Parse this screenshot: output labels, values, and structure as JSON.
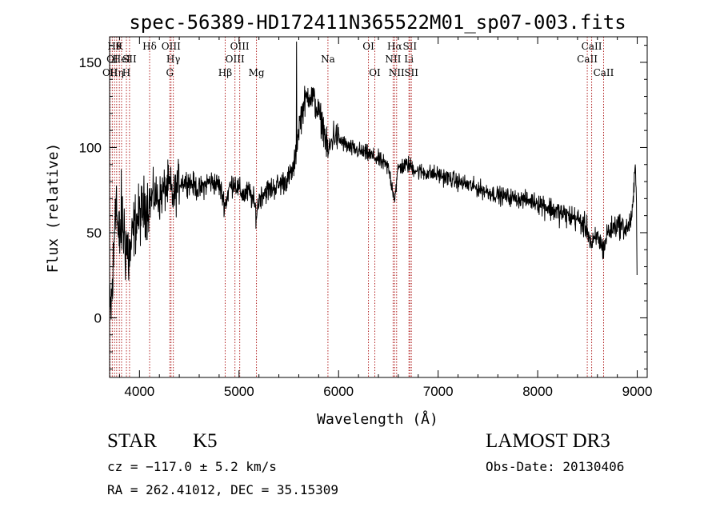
{
  "chart_data": {
    "type": "line",
    "title": "spec-56389-HD172411N365522M01_sp07-003.fits",
    "xlabel": "Wavelength (Å)",
    "ylabel": "Flux (relative)",
    "xlim": [
      3700,
      9100
    ],
    "ylim": [
      -35,
      165
    ],
    "xticks": [
      4000,
      5000,
      6000,
      7000,
      8000,
      9000
    ],
    "yticks": [
      0,
      50,
      100,
      150
    ],
    "grid": false,
    "line_color": "#000000",
    "marker_color": "#b22222",
    "spectrum_anchors": {
      "x": [
        3700,
        3720,
        3740,
        3760,
        3790,
        3820,
        3860,
        3900,
        3950,
        4000,
        4050,
        4100,
        4150,
        4200,
        4250,
        4300,
        4340,
        4400,
        4500,
        4600,
        4700,
        4800,
        4861,
        4900,
        4950,
        5000,
        5050,
        5100,
        5150,
        5175,
        5200,
        5250,
        5300,
        5400,
        5500,
        5550,
        5580,
        5600,
        5650,
        5700,
        5750,
        5800,
        5850,
        5893,
        5950,
        6000,
        6100,
        6200,
        6300,
        6400,
        6500,
        6563,
        6600,
        6700,
        6800,
        7000,
        7200,
        7400,
        7600,
        7800,
        8000,
        8200,
        8400,
        8500,
        8542,
        8600,
        8662,
        8700,
        8800,
        8900,
        8950,
        8980,
        8990,
        9000
      ],
      "y": [
        -5,
        10,
        30,
        80,
        40,
        60,
        45,
        35,
        55,
        60,
        65,
        68,
        72,
        70,
        75,
        78,
        70,
        80,
        80,
        75,
        80,
        78,
        66,
        76,
        80,
        75,
        72,
        74,
        68,
        60,
        70,
        74,
        75,
        78,
        82,
        88,
        100,
        112,
        125,
        132,
        128,
        120,
        112,
        96,
        108,
        105,
        100,
        98,
        96,
        93,
        88,
        70,
        88,
        90,
        86,
        84,
        80,
        76,
        72,
        70,
        68,
        62,
        58,
        52,
        42,
        48,
        40,
        50,
        55,
        52,
        60,
        88,
        80,
        20
      ]
    },
    "markers": [
      {
        "x": 3705,
        "label": "OII",
        "row": 3
      },
      {
        "x": 3727,
        "label": "OI",
        "row": 2
      },
      {
        "x": 3750,
        "label": "Hθ",
        "row": 1
      },
      {
        "x": 3771,
        "label": "Hη",
        "row": 3
      },
      {
        "x": 3798,
        "label": "K",
        "row": 1
      },
      {
        "x": 3820,
        "label": "HeI",
        "row": 2
      },
      {
        "x": 3869,
        "label": "H",
        "row": 3
      },
      {
        "x": 3900,
        "label": "SII",
        "row": 2
      },
      {
        "x": 4102,
        "label": "Hδ",
        "row": 1
      },
      {
        "x": 4305,
        "label": "G",
        "row": 3
      },
      {
        "x": 4317,
        "label": "OIII",
        "row": 1
      },
      {
        "x": 4340,
        "label": "Hγ",
        "row": 2
      },
      {
        "x": 4861,
        "label": "Hβ",
        "row": 3
      },
      {
        "x": 4959,
        "label": "OIII",
        "row": 2
      },
      {
        "x": 5007,
        "label": "OIII",
        "row": 1
      },
      {
        "x": 5175,
        "label": "Mg",
        "row": 3
      },
      {
        "x": 5893,
        "label": "Na",
        "row": 2
      },
      {
        "x": 6300,
        "label": "OI",
        "row": 1
      },
      {
        "x": 6364,
        "label": "OI",
        "row": 3
      },
      {
        "x": 6548,
        "label": "NII",
        "row": 2
      },
      {
        "x": 6563,
        "label": "Hα",
        "row": 1
      },
      {
        "x": 6583,
        "label": "NII",
        "row": 3
      },
      {
        "x": 6707,
        "label": "Li",
        "row": 2
      },
      {
        "x": 6716,
        "label": "SII",
        "row": 1
      },
      {
        "x": 6731,
        "label": "SII",
        "row": 3
      },
      {
        "x": 8498,
        "label": "CaII",
        "row": 2
      },
      {
        "x": 8542,
        "label": "CaII",
        "row": 1
      },
      {
        "x": 8662,
        "label": "CaII",
        "row": 3
      }
    ]
  },
  "info": {
    "class": "STAR",
    "subclass": "K5",
    "survey": "LAMOST DR3",
    "cz": "cz = −117.0 ± 5.2 km/s",
    "obs_date": "Obs-Date: 20130406",
    "coords": "RA = 262.41012, DEC =  35.15309"
  }
}
